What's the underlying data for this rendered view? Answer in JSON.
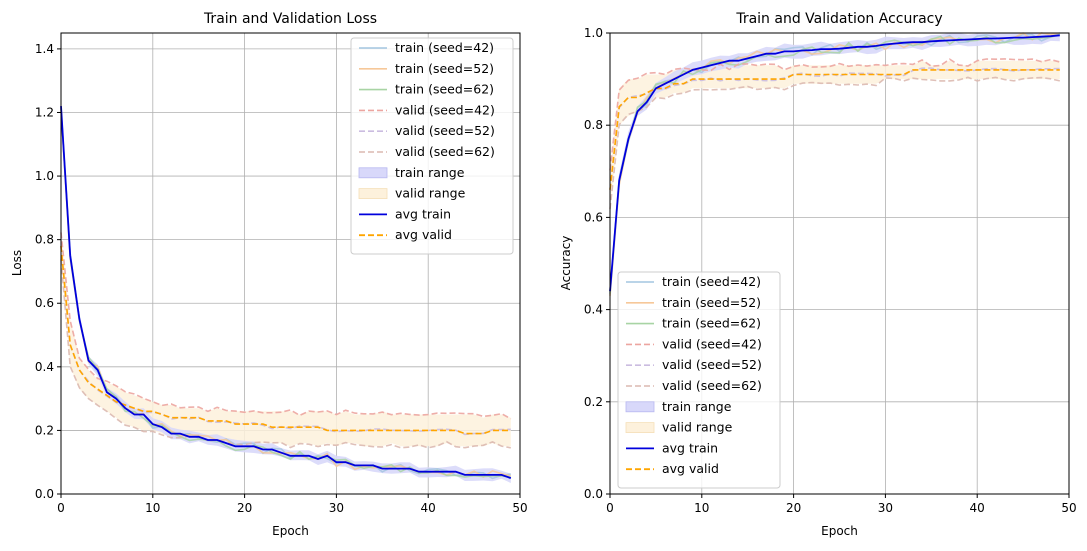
{
  "chart_data": [
    {
      "type": "line",
      "title": "Train and Validation Loss",
      "xlabel": "Epoch",
      "ylabel": "Loss",
      "xlim": [
        0,
        50
      ],
      "ylim": [
        0,
        1.45
      ],
      "xticks": [
        "0",
        "10",
        "20",
        "30",
        "40",
        "50"
      ],
      "yticks": [
        "0.0",
        "0.2",
        "0.4",
        "0.6",
        "0.8",
        "1.0",
        "1.2",
        "1.4"
      ],
      "grid": true,
      "legend_position": "top-right",
      "legend": [
        "train (seed=42)",
        "train (seed=52)",
        "train (seed=62)",
        "valid (seed=42)",
        "valid (seed=52)",
        "valid (seed=62)",
        "train range",
        "valid range",
        "avg train",
        "avg valid"
      ],
      "x": [
        0,
        1,
        2,
        3,
        4,
        5,
        6,
        7,
        8,
        9,
        10,
        11,
        12,
        13,
        14,
        15,
        16,
        17,
        18,
        19,
        20,
        21,
        22,
        23,
        24,
        25,
        26,
        27,
        28,
        29,
        30,
        31,
        32,
        33,
        34,
        35,
        36,
        37,
        38,
        39,
        40,
        41,
        42,
        43,
        44,
        45,
        46,
        47,
        48,
        49
      ],
      "series": [
        {
          "name": "avg train",
          "values": [
            1.22,
            0.75,
            0.55,
            0.42,
            0.39,
            0.32,
            0.3,
            0.27,
            0.25,
            0.25,
            0.22,
            0.21,
            0.19,
            0.19,
            0.18,
            0.18,
            0.17,
            0.17,
            0.16,
            0.15,
            0.15,
            0.15,
            0.14,
            0.14,
            0.13,
            0.12,
            0.12,
            0.12,
            0.11,
            0.12,
            0.1,
            0.1,
            0.09,
            0.09,
            0.09,
            0.08,
            0.08,
            0.08,
            0.08,
            0.07,
            0.07,
            0.07,
            0.07,
            0.07,
            0.06,
            0.06,
            0.06,
            0.06,
            0.06,
            0.05
          ]
        },
        {
          "name": "avg valid",
          "values": [
            0.78,
            0.47,
            0.39,
            0.35,
            0.33,
            0.31,
            0.29,
            0.28,
            0.27,
            0.26,
            0.26,
            0.25,
            0.24,
            0.24,
            0.24,
            0.24,
            0.23,
            0.23,
            0.23,
            0.22,
            0.22,
            0.22,
            0.22,
            0.21,
            0.21,
            0.21,
            0.21,
            0.21,
            0.21,
            0.2,
            0.2,
            0.2,
            0.2,
            0.2,
            0.2,
            0.2,
            0.2,
            0.2,
            0.2,
            0.2,
            0.2,
            0.2,
            0.2,
            0.2,
            0.19,
            0.19,
            0.19,
            0.2,
            0.2,
            0.2
          ]
        },
        {
          "name": "valid range upper",
          "values": [
            0.82,
            0.55,
            0.43,
            0.39,
            0.36,
            0.35,
            0.34,
            0.32,
            0.31,
            0.3,
            0.29,
            0.28,
            0.28,
            0.27,
            0.27,
            0.27,
            0.26,
            0.27,
            0.26,
            0.26,
            0.26,
            0.26,
            0.26,
            0.26,
            0.26,
            0.26,
            0.25,
            0.26,
            0.26,
            0.26,
            0.25,
            0.26,
            0.25,
            0.25,
            0.25,
            0.26,
            0.25,
            0.25,
            0.25,
            0.25,
            0.25,
            0.25,
            0.25,
            0.25,
            0.25,
            0.25,
            0.24,
            0.25,
            0.25,
            0.24
          ]
        },
        {
          "name": "valid range lower",
          "values": [
            0.74,
            0.4,
            0.33,
            0.3,
            0.28,
            0.26,
            0.24,
            0.22,
            0.21,
            0.2,
            0.2,
            0.19,
            0.18,
            0.18,
            0.18,
            0.18,
            0.17,
            0.17,
            0.16,
            0.16,
            0.16,
            0.16,
            0.16,
            0.16,
            0.16,
            0.15,
            0.16,
            0.16,
            0.15,
            0.16,
            0.15,
            0.16,
            0.16,
            0.15,
            0.15,
            0.15,
            0.16,
            0.15,
            0.15,
            0.15,
            0.15,
            0.15,
            0.16,
            0.15,
            0.15,
            0.15,
            0.15,
            0.16,
            0.15,
            0.15
          ]
        }
      ]
    },
    {
      "type": "line",
      "title": "Train and Validation Accuracy",
      "xlabel": "Epoch",
      "ylabel": "Accuracy",
      "xlim": [
        0,
        50
      ],
      "ylim": [
        0,
        1.0
      ],
      "xticks": [
        "0",
        "10",
        "20",
        "30",
        "40",
        "50"
      ],
      "yticks": [
        "0.0",
        "0.2",
        "0.4",
        "0.6",
        "0.8",
        "1.0"
      ],
      "grid": true,
      "legend_position": "bottom-left",
      "legend": [
        "train (seed=42)",
        "train (seed=52)",
        "train (seed=62)",
        "valid (seed=42)",
        "valid (seed=52)",
        "valid (seed=62)",
        "train range",
        "valid range",
        "avg train",
        "avg valid"
      ],
      "x": [
        0,
        1,
        2,
        3,
        4,
        5,
        6,
        7,
        8,
        9,
        10,
        11,
        12,
        13,
        14,
        15,
        16,
        17,
        18,
        19,
        20,
        21,
        22,
        23,
        24,
        25,
        26,
        27,
        28,
        29,
        30,
        31,
        32,
        33,
        34,
        35,
        36,
        37,
        38,
        39,
        40,
        41,
        42,
        43,
        44,
        45,
        46,
        47,
        48,
        49
      ],
      "series": [
        {
          "name": "avg train",
          "values": [
            0.44,
            0.68,
            0.77,
            0.83,
            0.85,
            0.88,
            0.89,
            0.9,
            0.91,
            0.92,
            0.925,
            0.93,
            0.935,
            0.94,
            0.94,
            0.945,
            0.95,
            0.955,
            0.955,
            0.96,
            0.96,
            0.962,
            0.963,
            0.965,
            0.965,
            0.966,
            0.968,
            0.97,
            0.97,
            0.972,
            0.975,
            0.977,
            0.979,
            0.98,
            0.98,
            0.982,
            0.983,
            0.984,
            0.985,
            0.986,
            0.987,
            0.988,
            0.988,
            0.989,
            0.99,
            0.99,
            0.991,
            0.992,
            0.993,
            0.995
          ]
        },
        {
          "name": "avg valid",
          "values": [
            0.66,
            0.84,
            0.86,
            0.86,
            0.87,
            0.88,
            0.88,
            0.89,
            0.89,
            0.9,
            0.9,
            0.9,
            0.9,
            0.9,
            0.9,
            0.9,
            0.9,
            0.9,
            0.9,
            0.9,
            0.91,
            0.91,
            0.91,
            0.91,
            0.91,
            0.91,
            0.91,
            0.91,
            0.91,
            0.91,
            0.91,
            0.91,
            0.91,
            0.92,
            0.92,
            0.92,
            0.92,
            0.92,
            0.92,
            0.92,
            0.92,
            0.92,
            0.92,
            0.92,
            0.92,
            0.92,
            0.92,
            0.92,
            0.92,
            0.92
          ]
        },
        {
          "name": "valid range upper",
          "values": [
            0.7,
            0.88,
            0.9,
            0.9,
            0.91,
            0.91,
            0.91,
            0.92,
            0.92,
            0.92,
            0.92,
            0.92,
            0.93,
            0.92,
            0.93,
            0.93,
            0.93,
            0.93,
            0.93,
            0.92,
            0.93,
            0.93,
            0.93,
            0.93,
            0.93,
            0.93,
            0.93,
            0.93,
            0.93,
            0.93,
            0.93,
            0.93,
            0.93,
            0.93,
            0.94,
            0.93,
            0.93,
            0.94,
            0.93,
            0.93,
            0.94,
            0.94,
            0.94,
            0.94,
            0.94,
            0.94,
            0.94,
            0.94,
            0.94,
            0.94
          ]
        },
        {
          "name": "valid range lower",
          "values": [
            0.62,
            0.8,
            0.82,
            0.83,
            0.84,
            0.86,
            0.86,
            0.87,
            0.87,
            0.88,
            0.88,
            0.88,
            0.88,
            0.88,
            0.88,
            0.88,
            0.88,
            0.88,
            0.88,
            0.88,
            0.89,
            0.89,
            0.89,
            0.89,
            0.89,
            0.89,
            0.89,
            0.89,
            0.89,
            0.89,
            0.9,
            0.9,
            0.9,
            0.9,
            0.9,
            0.9,
            0.9,
            0.9,
            0.9,
            0.9,
            0.9,
            0.9,
            0.9,
            0.9,
            0.9,
            0.9,
            0.9,
            0.9,
            0.9,
            0.9
          ]
        }
      ]
    }
  ],
  "colors": {
    "avg_train": "#0000dd",
    "avg_valid": "#ffa500",
    "train_range": "#d8d8fa",
    "valid_range": "#fdf1dc",
    "seed42_train": "#a4c6e0",
    "seed52_train": "#f6c899",
    "seed62_train": "#a8d4a4",
    "seed42_valid": "#eca5a0",
    "seed52_valid": "#cbbce0",
    "seed62_valid": "#dcb9b0"
  }
}
